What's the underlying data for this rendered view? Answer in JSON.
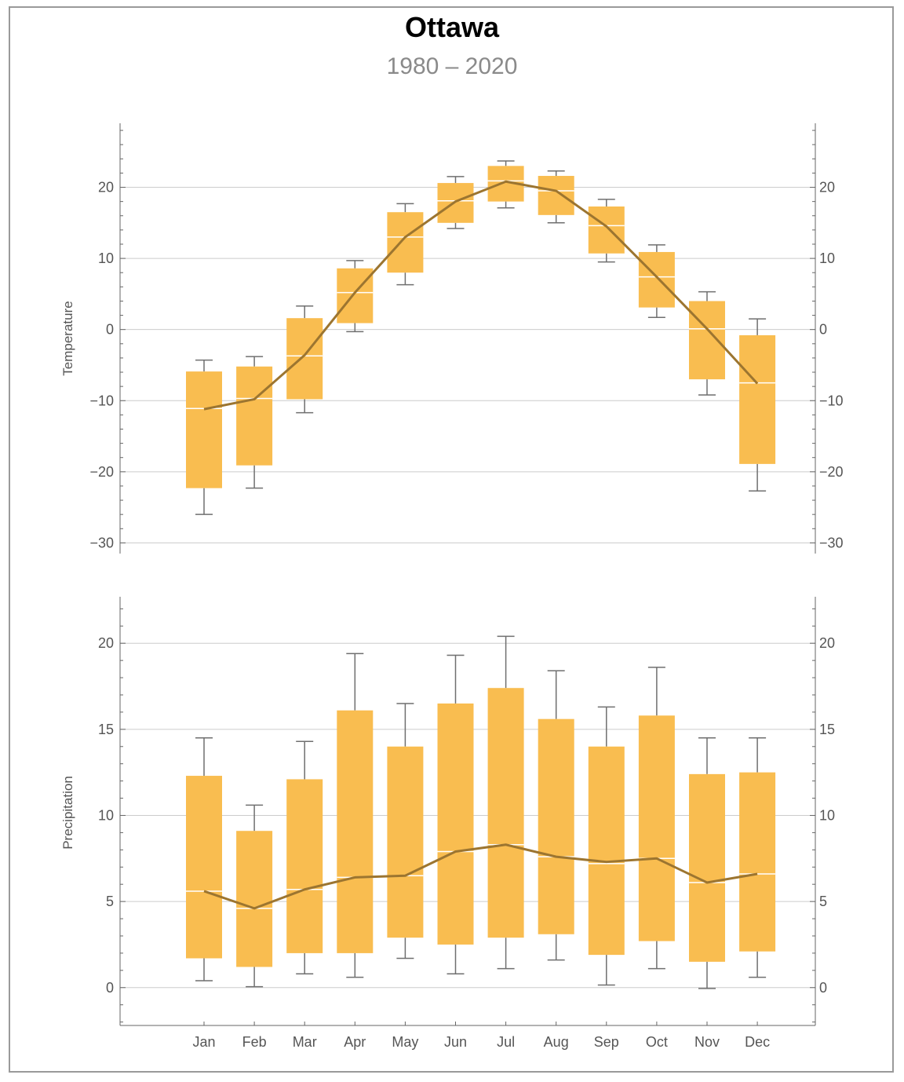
{
  "title": "Ottawa",
  "subtitle": "1980 – 2020",
  "colors": {
    "box": "#f9bd50",
    "median": "#ffffff",
    "mean_line": "#9c7530",
    "whisker": "#6f6f6f",
    "grid": "#cccccc",
    "axis": "#666666",
    "frame": "#9a9a9a"
  },
  "chart_data": [
    {
      "type": "box",
      "name": "temperature",
      "ylabel": "Temperature",
      "ylim": [
        -31.5,
        29
      ],
      "yticks": [
        -30,
        -20,
        -10,
        0,
        10,
        20
      ],
      "ytick_labels": [
        "−30",
        "−20",
        "−10",
        "0",
        "10",
        "20"
      ],
      "grid": true,
      "categories": [
        "Jan",
        "Feb",
        "Mar",
        "Apr",
        "May",
        "Jun",
        "Jul",
        "Aug",
        "Sep",
        "Oct",
        "Nov",
        "Dec"
      ],
      "whisker_low": [
        -26.0,
        -22.3,
        -11.7,
        -0.3,
        6.3,
        14.2,
        17.1,
        15.0,
        9.5,
        1.7,
        -9.2,
        -22.7
      ],
      "q1": [
        -22.3,
        -19.1,
        -9.8,
        0.9,
        8.0,
        15.0,
        18.0,
        16.1,
        10.7,
        3.1,
        -7.0,
        -18.9
      ],
      "median": [
        -11.1,
        -9.7,
        -3.7,
        5.2,
        13.0,
        18.1,
        20.9,
        19.5,
        14.6,
        7.4,
        0.1,
        -7.5
      ],
      "q3": [
        -5.9,
        -5.2,
        1.6,
        8.6,
        16.5,
        20.6,
        23.0,
        21.6,
        17.3,
        10.9,
        4.0,
        -0.8
      ],
      "whisker_high": [
        -4.3,
        -3.8,
        3.3,
        9.7,
        17.7,
        21.5,
        23.7,
        22.3,
        18.3,
        11.9,
        5.3,
        1.5
      ],
      "mean": [
        -11.2,
        -9.8,
        -3.6,
        5.2,
        13.0,
        18.0,
        20.8,
        19.5,
        14.5,
        7.4,
        0.1,
        -7.6
      ]
    },
    {
      "type": "box",
      "name": "precipitation",
      "ylabel": "Precipitation",
      "ylim": [
        -2.2,
        22.7
      ],
      "yticks": [
        0,
        5,
        10,
        15,
        20
      ],
      "ytick_labels": [
        "0",
        "5",
        "10",
        "15",
        "20"
      ],
      "grid": true,
      "categories": [
        "Jan",
        "Feb",
        "Mar",
        "Apr",
        "May",
        "Jun",
        "Jul",
        "Aug",
        "Sep",
        "Oct",
        "Nov",
        "Dec"
      ],
      "whisker_low": [
        0.4,
        0.05,
        0.8,
        0.6,
        1.7,
        0.8,
        1.1,
        1.6,
        0.15,
        1.1,
        -0.05,
        0.6
      ],
      "q1": [
        1.7,
        1.2,
        2.0,
        2.0,
        2.9,
        2.5,
        2.9,
        3.1,
        1.9,
        2.7,
        1.5,
        2.1
      ],
      "median": [
        5.6,
        4.6,
        5.7,
        6.4,
        6.5,
        7.9,
        8.3,
        7.6,
        7.2,
        7.5,
        6.1,
        6.6
      ],
      "q3": [
        12.3,
        9.1,
        12.1,
        16.1,
        14.0,
        16.5,
        17.4,
        15.6,
        14.0,
        15.8,
        12.4,
        12.5
      ],
      "whisker_high": [
        14.5,
        10.6,
        14.3,
        19.4,
        16.5,
        19.3,
        20.4,
        18.4,
        16.3,
        18.6,
        14.5,
        14.5
      ],
      "mean": [
        5.6,
        4.6,
        5.7,
        6.4,
        6.5,
        7.9,
        8.3,
        7.6,
        7.3,
        7.5,
        6.1,
        6.6
      ]
    }
  ]
}
